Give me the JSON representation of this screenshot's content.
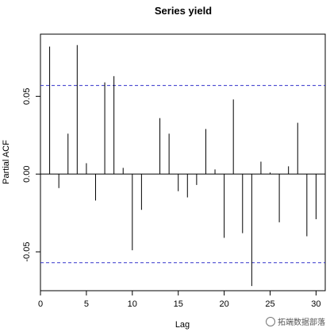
{
  "chart_data": {
    "type": "bar",
    "subtype": "partial-acf",
    "title": "Series  yield",
    "xlabel": "Lag",
    "ylabel": "Partial ACF",
    "xlim": [
      0,
      31
    ],
    "ylim": [
      -0.075,
      0.09
    ],
    "x_ticks": [
      0,
      5,
      10,
      15,
      20,
      25,
      30
    ],
    "y_ticks": [
      -0.05,
      0.0,
      0.05
    ],
    "y_tick_labels": [
      "-0.05",
      "0.00",
      "0.05"
    ],
    "confidence_bound": 0.057,
    "confidence_color": "#3333cc",
    "lags": [
      1,
      2,
      3,
      4,
      5,
      6,
      7,
      8,
      9,
      10,
      11,
      12,
      13,
      14,
      15,
      16,
      17,
      18,
      19,
      20,
      21,
      22,
      23,
      24,
      25,
      26,
      27,
      28,
      29,
      30
    ],
    "values": [
      0.082,
      -0.009,
      0.026,
      0.083,
      0.007,
      -0.017,
      0.059,
      0.063,
      0.004,
      -0.049,
      -0.023,
      0.0,
      0.036,
      0.026,
      -0.011,
      -0.015,
      -0.007,
      0.029,
      0.003,
      -0.041,
      0.048,
      -0.038,
      -0.072,
      0.008,
      0.001,
      -0.031,
      0.005,
      0.033,
      -0.04,
      -0.029
    ],
    "grid": false,
    "legend": "none"
  },
  "watermark": {
    "text": "拓端数据部落"
  }
}
